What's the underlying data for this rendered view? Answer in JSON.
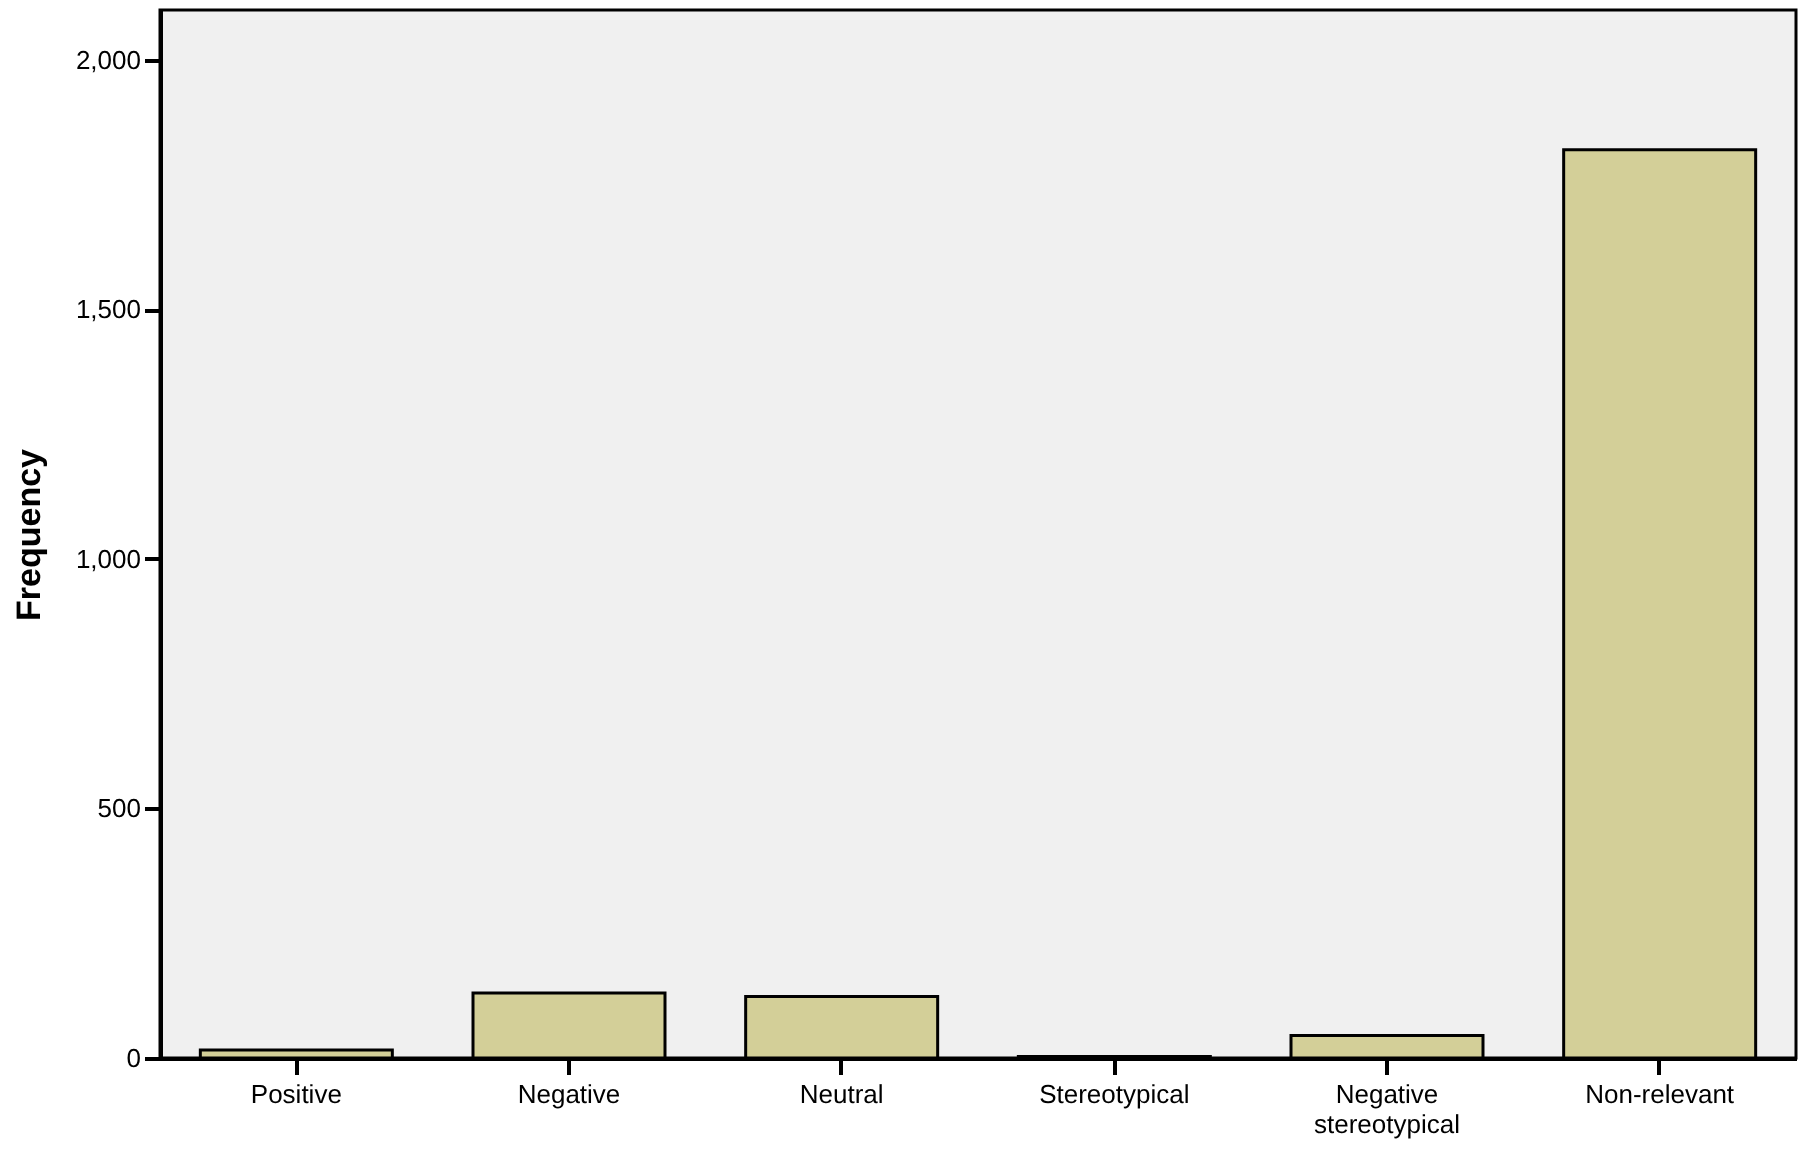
{
  "chart_data": {
    "type": "bar",
    "ylabel": "Frequency",
    "categories": [
      "Positive",
      "Negative",
      "Neutral",
      "Stereotypical",
      "Negative stereotypical",
      "Non-relevant"
    ],
    "values": [
      16,
      130,
      123,
      3,
      45,
      1820
    ],
    "color": "#d3cf98",
    "ylim": [
      0,
      2100
    ],
    "yticks": [
      0,
      500,
      {
        "value": 1000,
        "label": "1,000"
      },
      {
        "value": 1500,
        "label": "1,500"
      },
      {
        "value": 2000,
        "label": "2,000"
      }
    ],
    "grid": false
  }
}
